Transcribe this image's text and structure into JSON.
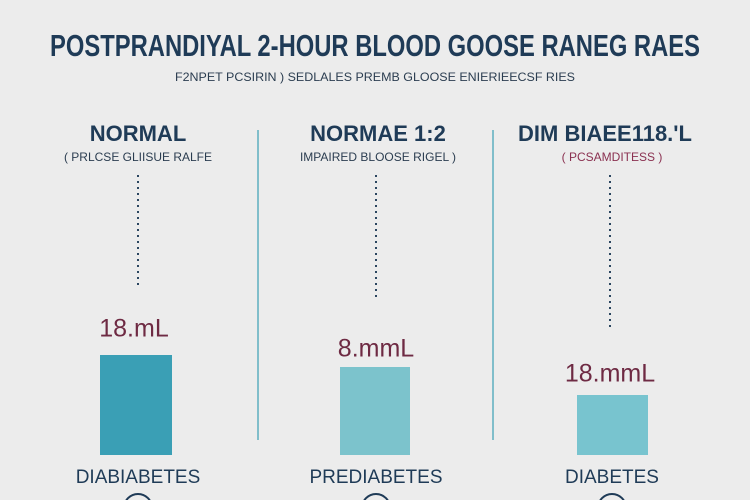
{
  "header": {
    "title": "POSTPRANDIYAL 2-HOUR BLOOD GOOSE RANEG RAES",
    "subtitle": "F2NPET PCSIRIN ) SEDLALES PREMB GLOOSE ENIERIEECSF RIES"
  },
  "panels": [
    {
      "title": "NORMAL",
      "subtitle": "( PRLCSE GLIISUE RALFE",
      "value_label": "18.mL",
      "category": "DIABIABETES"
    },
    {
      "title": "NORMAE 1:2",
      "subtitle": "IMPAIRED BLOOSE RIGEL )",
      "value_label": "8.mmL",
      "category": "PREDIABETES"
    },
    {
      "title": "DIM BIAEE118.'L",
      "subtitle": "( PCSAMDITESS )",
      "value_label": "18.mmL",
      "category": "DIABETES"
    }
  ]
}
